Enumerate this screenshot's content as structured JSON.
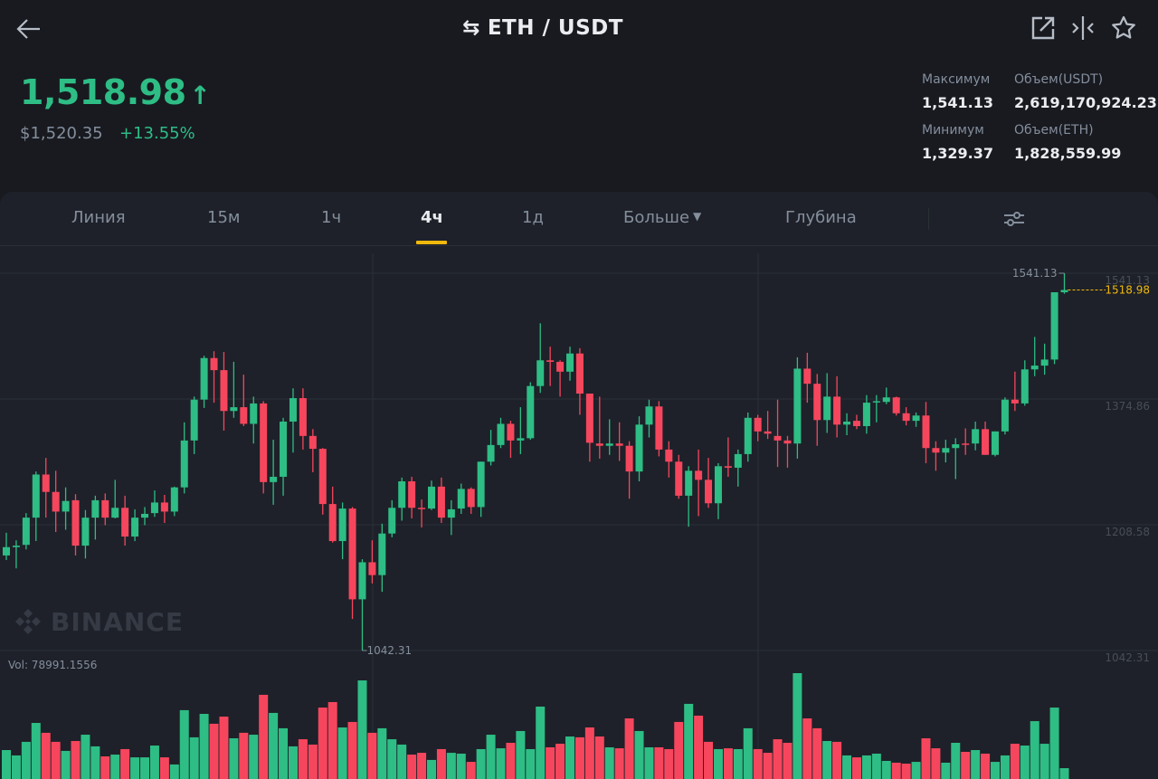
{
  "header": {
    "title": "ETH / USDT",
    "icons": {
      "back": "arrow-left-icon",
      "swap": "swap-arrows-icon",
      "external": "external-link-icon",
      "compare": "compare-icon",
      "favorite": "star-icon"
    }
  },
  "ticker": {
    "last_price": "1,518.98",
    "direction": "up",
    "usd_price": "$1,520.35",
    "change_percent": "+13.55%",
    "stats": [
      {
        "label": "Максимум",
        "value": "1,541.13"
      },
      {
        "label": "Объем(USDT)",
        "value": "2,619,170,924.23"
      },
      {
        "label": "Минимум",
        "value": "1,329.37"
      },
      {
        "label": "Объем(ETH)",
        "value": "1,828,559.99"
      }
    ]
  },
  "tabs": [
    {
      "label": "Линия",
      "active": false
    },
    {
      "label": "15м",
      "active": false
    },
    {
      "label": "1ч",
      "active": false
    },
    {
      "label": "4ч",
      "active": true
    },
    {
      "label": "1д",
      "active": false
    },
    {
      "label": "Больше",
      "active": false,
      "dropdown": true
    },
    {
      "label": "Глубина",
      "active": false
    }
  ],
  "settings_icon": "sliders-icon",
  "watermark": "BINANCE",
  "colors": {
    "up": "#2ebd85",
    "down": "#f6465d",
    "accent": "#f0b90b",
    "background": "#181a20",
    "panel": "#1e2129"
  },
  "chart_data": {
    "type": "candlestick",
    "interval": "4ч",
    "y_ticks": [
      "1541.13",
      "1374.86",
      "1208.58",
      "1042.31"
    ],
    "ylim": [
      1042.31,
      1541.13
    ],
    "grid": true,
    "high_label": "1541.13",
    "low_label": "1042.31",
    "last_price_label": "1518.98",
    "volume_label": "Vol: 78991.1556",
    "ohlc": [
      [
        1168,
        1198,
        1162,
        1179
      ],
      [
        1179,
        1188,
        1151,
        1181
      ],
      [
        1182,
        1224,
        1176,
        1218
      ],
      [
        1218,
        1279,
        1187,
        1275
      ],
      [
        1275,
        1297,
        1218,
        1252
      ],
      [
        1252,
        1280,
        1199,
        1226
      ],
      [
        1226,
        1258,
        1202,
        1240
      ],
      [
        1241,
        1249,
        1168,
        1181
      ],
      [
        1181,
        1228,
        1164,
        1218
      ],
      [
        1218,
        1247,
        1189,
        1241
      ],
      [
        1241,
        1250,
        1208,
        1218
      ],
      [
        1218,
        1268,
        1217,
        1231
      ],
      [
        1231,
        1247,
        1181,
        1193
      ],
      [
        1193,
        1229,
        1187,
        1218
      ],
      [
        1218,
        1232,
        1208,
        1223
      ],
      [
        1224,
        1254,
        1219,
        1238
      ],
      [
        1238,
        1248,
        1211,
        1226
      ],
      [
        1226,
        1259,
        1220,
        1258
      ],
      [
        1258,
        1344,
        1250,
        1320
      ],
      [
        1320,
        1378,
        1302,
        1374
      ],
      [
        1374,
        1432,
        1363,
        1429
      ],
      [
        1429,
        1438,
        1370,
        1413
      ],
      [
        1413,
        1437,
        1333,
        1359
      ],
      [
        1359,
        1424,
        1350,
        1364
      ],
      [
        1364,
        1407,
        1339,
        1342
      ],
      [
        1342,
        1378,
        1316,
        1369
      ],
      [
        1369,
        1372,
        1250,
        1265
      ],
      [
        1265,
        1321,
        1235,
        1272
      ],
      [
        1272,
        1350,
        1247,
        1345
      ],
      [
        1345,
        1389,
        1304,
        1376
      ],
      [
        1376,
        1389,
        1308,
        1326
      ],
      [
        1326,
        1335,
        1278,
        1309
      ],
      [
        1309,
        1310,
        1222,
        1236
      ],
      [
        1236,
        1259,
        1185,
        1187
      ],
      [
        1187,
        1238,
        1163,
        1230
      ],
      [
        1230,
        1232,
        1084,
        1110
      ],
      [
        1110,
        1163,
        1042.31,
        1159
      ],
      [
        1159,
        1188,
        1131,
        1142
      ],
      [
        1142,
        1210,
        1120,
        1197
      ],
      [
        1197,
        1241,
        1192,
        1231
      ],
      [
        1231,
        1271,
        1214,
        1266
      ],
      [
        1266,
        1272,
        1217,
        1231
      ],
      [
        1231,
        1242,
        1205,
        1230
      ],
      [
        1230,
        1267,
        1228,
        1259
      ],
      [
        1259,
        1271,
        1211,
        1218
      ],
      [
        1218,
        1241,
        1195,
        1229
      ],
      [
        1230,
        1263,
        1223,
        1256
      ],
      [
        1256,
        1258,
        1223,
        1232
      ],
      [
        1232,
        1292,
        1219,
        1292
      ],
      [
        1292,
        1334,
        1287,
        1314
      ],
      [
        1314,
        1350,
        1310,
        1342
      ],
      [
        1342,
        1346,
        1297,
        1320
      ],
      [
        1320,
        1364,
        1302,
        1323
      ],
      [
        1323,
        1397,
        1321,
        1392
      ],
      [
        1392,
        1475,
        1383,
        1426
      ],
      [
        1426,
        1444,
        1392,
        1424
      ],
      [
        1424,
        1426,
        1378,
        1411
      ],
      [
        1411,
        1444,
        1399,
        1435
      ],
      [
        1435,
        1442,
        1354,
        1382
      ],
      [
        1382,
        1382,
        1292,
        1317
      ],
      [
        1316,
        1378,
        1296,
        1313
      ],
      [
        1313,
        1348,
        1301,
        1316
      ],
      [
        1316,
        1344,
        1293,
        1313
      ],
      [
        1313,
        1319,
        1243,
        1279
      ],
      [
        1279,
        1352,
        1266,
        1341
      ],
      [
        1341,
        1374,
        1324,
        1365
      ],
      [
        1365,
        1372,
        1299,
        1308
      ],
      [
        1308,
        1319,
        1271,
        1292
      ],
      [
        1292,
        1301,
        1243,
        1247
      ],
      [
        1247,
        1286,
        1206,
        1280
      ],
      [
        1280,
        1308,
        1220,
        1268
      ],
      [
        1268,
        1297,
        1231,
        1237
      ],
      [
        1237,
        1290,
        1216,
        1286
      ],
      [
        1286,
        1324,
        1272,
        1284
      ],
      [
        1284,
        1308,
        1259,
        1302
      ],
      [
        1302,
        1357,
        1292,
        1350
      ],
      [
        1350,
        1354,
        1319,
        1332
      ],
      [
        1332,
        1359,
        1322,
        1329
      ],
      [
        1326,
        1374,
        1285,
        1320
      ],
      [
        1320,
        1326,
        1284,
        1316
      ],
      [
        1316,
        1430,
        1296,
        1415
      ],
      [
        1415,
        1436,
        1370,
        1395
      ],
      [
        1395,
        1408,
        1313,
        1347
      ],
      [
        1347,
        1409,
        1330,
        1378
      ],
      [
        1378,
        1405,
        1324,
        1341
      ],
      [
        1341,
        1356,
        1327,
        1345
      ],
      [
        1346,
        1354,
        1335,
        1339
      ],
      [
        1339,
        1380,
        1329,
        1370
      ],
      [
        1371,
        1380,
        1344,
        1372
      ],
      [
        1371,
        1390,
        1368,
        1377
      ],
      [
        1377,
        1378,
        1353,
        1356
      ],
      [
        1356,
        1364,
        1340,
        1346
      ],
      [
        1346,
        1357,
        1338,
        1353
      ],
      [
        1353,
        1371,
        1290,
        1310
      ],
      [
        1310,
        1319,
        1280,
        1304
      ],
      [
        1304,
        1321,
        1291,
        1310
      ],
      [
        1310,
        1323,
        1269,
        1315
      ],
      [
        1316,
        1336,
        1301,
        1315
      ],
      [
        1316,
        1345,
        1307,
        1335
      ],
      [
        1335,
        1345,
        1301,
        1301
      ],
      [
        1301,
        1332,
        1299,
        1332
      ],
      [
        1332,
        1377,
        1328,
        1374
      ],
      [
        1374,
        1411,
        1359,
        1369
      ],
      [
        1369,
        1426,
        1366,
        1414
      ],
      [
        1414,
        1457,
        1405,
        1419
      ],
      [
        1419,
        1448,
        1407,
        1427
      ],
      [
        1427,
        1516,
        1421,
        1516
      ],
      [
        1516,
        1541.13,
        1514,
        1518.98
      ]
    ],
    "volume": [
      211000,
      172000,
      271000,
      409000,
      337000,
      271000,
      205000,
      277000,
      323000,
      238000,
      165000,
      178000,
      218000,
      158000,
      158000,
      244000,
      158000,
      106000,
      502000,
      304000,
      475000,
      403000,
      455000,
      297000,
      337000,
      323000,
      614000,
      482000,
      370000,
      238000,
      290000,
      251000,
      521000,
      561000,
      376000,
      416000,
      719000,
      337000,
      370000,
      290000,
      251000,
      178000,
      191000,
      139000,
      218000,
      191000,
      185000,
      125000,
      218000,
      323000,
      224000,
      264000,
      350000,
      218000,
      528000,
      231000,
      257000,
      310000,
      304000,
      376000,
      310000,
      231000,
      224000,
      442000,
      350000,
      231000,
      231000,
      218000,
      416000,
      548000,
      462000,
      271000,
      218000,
      224000,
      218000,
      370000,
      218000,
      191000,
      290000,
      264000,
      772000,
      442000,
      370000,
      277000,
      271000,
      172000,
      158000,
      172000,
      185000,
      132000,
      119000,
      112000,
      125000,
      297000,
      224000,
      119000,
      264000,
      198000,
      211000,
      185000,
      125000,
      172000,
      257000,
      244000,
      422000,
      257000,
      521000,
      78991.1556
    ]
  }
}
